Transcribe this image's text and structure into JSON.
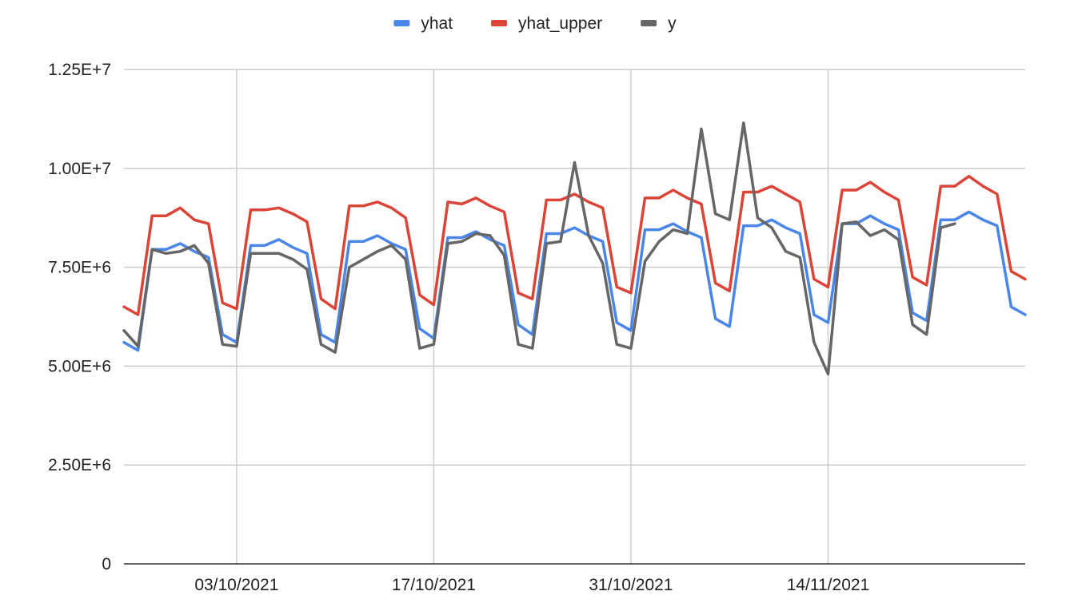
{
  "chart_data": {
    "type": "line",
    "title": "",
    "xlabel": "",
    "ylabel": "",
    "ylim": [
      0,
      12500000
    ],
    "xlim": [
      "2021-09-25",
      "2021-11-28"
    ],
    "grid": true,
    "legend_position": "top",
    "y_ticks": [
      {
        "value": 0,
        "label": "0"
      },
      {
        "value": 2500000,
        "label": "2.50E+6"
      },
      {
        "value": 5000000,
        "label": "5.00E+6"
      },
      {
        "value": 7500000,
        "label": "7.50E+6"
      },
      {
        "value": 10000000,
        "label": "1.00E+7"
      },
      {
        "value": 12500000,
        "label": "1.25E+7"
      }
    ],
    "x_ticks": [
      {
        "value": "2021-10-03",
        "label": "03/10/2021"
      },
      {
        "value": "2021-10-17",
        "label": "17/10/2021"
      },
      {
        "value": "2021-10-31",
        "label": "31/10/2021"
      },
      {
        "value": "2021-11-14",
        "label": "14/11/2021"
      }
    ],
    "x": [
      "2021-09-25",
      "2021-09-26",
      "2021-09-27",
      "2021-09-28",
      "2021-09-29",
      "2021-09-30",
      "2021-10-01",
      "2021-10-02",
      "2021-10-03",
      "2021-10-04",
      "2021-10-05",
      "2021-10-06",
      "2021-10-07",
      "2021-10-08",
      "2021-10-09",
      "2021-10-10",
      "2021-10-11",
      "2021-10-12",
      "2021-10-13",
      "2021-10-14",
      "2021-10-15",
      "2021-10-16",
      "2021-10-17",
      "2021-10-18",
      "2021-10-19",
      "2021-10-20",
      "2021-10-21",
      "2021-10-22",
      "2021-10-23",
      "2021-10-24",
      "2021-10-25",
      "2021-10-26",
      "2021-10-27",
      "2021-10-28",
      "2021-10-29",
      "2021-10-30",
      "2021-10-31",
      "2021-11-01",
      "2021-11-02",
      "2021-11-03",
      "2021-11-04",
      "2021-11-05",
      "2021-11-06",
      "2021-11-07",
      "2021-11-08",
      "2021-11-09",
      "2021-11-10",
      "2021-11-11",
      "2021-11-12",
      "2021-11-13",
      "2021-11-14",
      "2021-11-15",
      "2021-11-16",
      "2021-11-17",
      "2021-11-18",
      "2021-11-19",
      "2021-11-20",
      "2021-11-21",
      "2021-11-22",
      "2021-11-23",
      "2021-11-24",
      "2021-11-25",
      "2021-11-26",
      "2021-11-27",
      "2021-11-28"
    ],
    "series": [
      {
        "name": "yhat",
        "color": "#4a86e8",
        "values": [
          5600000,
          5400000,
          7950000,
          7950000,
          8100000,
          7900000,
          7750000,
          5800000,
          5600000,
          8050000,
          8050000,
          8200000,
          8000000,
          7850000,
          5800000,
          5600000,
          8150000,
          8150000,
          8300000,
          8100000,
          7950000,
          5950000,
          5700000,
          8250000,
          8250000,
          8400000,
          8200000,
          8050000,
          6050000,
          5800000,
          8350000,
          8350000,
          8500000,
          8300000,
          8150000,
          6100000,
          5900000,
          8450000,
          8450000,
          8600000,
          8400000,
          8250000,
          6200000,
          6000000,
          8550000,
          8550000,
          8700000,
          8500000,
          8350000,
          6300000,
          6100000,
          8600000,
          8600000,
          8800000,
          8600000,
          8450000,
          6350000,
          6150000,
          8700000,
          8700000,
          8900000,
          8700000,
          8550000,
          6500000,
          6300000
        ]
      },
      {
        "name": "yhat_upper",
        "color": "#db4437",
        "values": [
          6500000,
          6300000,
          8800000,
          8800000,
          9000000,
          8700000,
          8600000,
          6600000,
          6450000,
          8950000,
          8950000,
          9000000,
          8850000,
          8650000,
          6700000,
          6450000,
          9050000,
          9050000,
          9150000,
          9000000,
          8750000,
          6800000,
          6550000,
          9150000,
          9100000,
          9250000,
          9050000,
          8900000,
          6850000,
          6700000,
          9200000,
          9200000,
          9350000,
          9150000,
          9000000,
          7000000,
          6850000,
          9250000,
          9250000,
          9450000,
          9250000,
          9100000,
          7100000,
          6900000,
          9400000,
          9400000,
          9550000,
          9350000,
          9150000,
          7200000,
          7000000,
          9450000,
          9450000,
          9650000,
          9400000,
          9200000,
          7250000,
          7050000,
          9550000,
          9550000,
          9800000,
          9550000,
          9350000,
          7400000,
          7200000
        ]
      },
      {
        "name": "y",
        "color": "#666666",
        "values": [
          5900000,
          5500000,
          7950000,
          7850000,
          7900000,
          8050000,
          7600000,
          5550000,
          5500000,
          7850000,
          7850000,
          7850000,
          7700000,
          7450000,
          5550000,
          5350000,
          7500000,
          7700000,
          7900000,
          8050000,
          7700000,
          5450000,
          5550000,
          8100000,
          8150000,
          8350000,
          8300000,
          7800000,
          5550000,
          5450000,
          8100000,
          8150000,
          10150000,
          8300000,
          7600000,
          5550000,
          5450000,
          7650000,
          8150000,
          8450000,
          8350000,
          11000000,
          8850000,
          8700000,
          11150000,
          8750000,
          8500000,
          7900000,
          7750000,
          5600000,
          4800000,
          8600000,
          8650000,
          8300000,
          8450000,
          8200000,
          6050000,
          5800000,
          8500000,
          8600000,
          null,
          null,
          null,
          null,
          null
        ]
      }
    ]
  }
}
